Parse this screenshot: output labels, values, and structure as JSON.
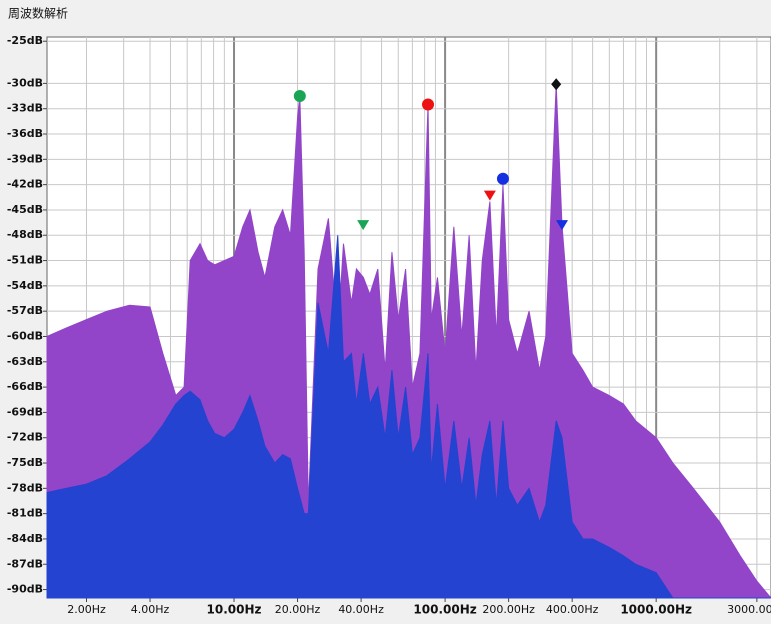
{
  "chart_data": {
    "type": "area",
    "title": "周波数解析",
    "log_x": true,
    "grid": true,
    "xlim": [
      1.3,
      3500
    ],
    "ylim": [
      -91,
      -24.5
    ],
    "xticks": [
      {
        "value": 2,
        "label": "2.00Hz"
      },
      {
        "value": 4,
        "label": "4.00Hz"
      },
      {
        "value": 10,
        "label": "10.00Hz"
      },
      {
        "value": 20,
        "label": "20.00Hz"
      },
      {
        "value": 40,
        "label": "40.00Hz"
      },
      {
        "value": 100,
        "label": "100.00Hz"
      },
      {
        "value": 200,
        "label": "200.00Hz"
      },
      {
        "value": 400,
        "label": "400.00Hz"
      },
      {
        "value": 1000,
        "label": "1000.00Hz"
      },
      {
        "value": 3000,
        "label": "3000.00Hz"
      }
    ],
    "xgrid": [
      2,
      3,
      4,
      5,
      6,
      7,
      8,
      9,
      10,
      20,
      30,
      40,
      50,
      60,
      70,
      80,
      90,
      100,
      200,
      300,
      400,
      500,
      600,
      700,
      800,
      900,
      1000,
      2000,
      3000
    ],
    "yticks": [
      {
        "value": -25,
        "label": "-25dB"
      },
      {
        "value": -30,
        "label": "-30dB"
      },
      {
        "value": -33,
        "label": "-33dB"
      },
      {
        "value": -36,
        "label": "-36dB"
      },
      {
        "value": -39,
        "label": "-39dB"
      },
      {
        "value": -42,
        "label": "-42dB"
      },
      {
        "value": -45,
        "label": "-45dB"
      },
      {
        "value": -48,
        "label": "-48dB"
      },
      {
        "value": -51,
        "label": "-51dB"
      },
      {
        "value": -54,
        "label": "-54dB"
      },
      {
        "value": -57,
        "label": "-57dB"
      },
      {
        "value": -60,
        "label": "-60dB"
      },
      {
        "value": -63,
        "label": "-63dB"
      },
      {
        "value": -66,
        "label": "-66dB"
      },
      {
        "value": -69,
        "label": "-69dB"
      },
      {
        "value": -72,
        "label": "-72dB"
      },
      {
        "value": -75,
        "label": "-75dB"
      },
      {
        "value": -78,
        "label": "-78dB"
      },
      {
        "value": -81,
        "label": "-81dB"
      },
      {
        "value": -84,
        "label": "-84dB"
      },
      {
        "value": -87,
        "label": "-87dB"
      },
      {
        "value": -90,
        "label": "-90dB"
      }
    ],
    "x": [
      1.3,
      1.6,
      2,
      2.5,
      3.2,
      4,
      4.6,
      5.3,
      5.8,
      6.2,
      6.9,
      7.5,
      8.1,
      9,
      10,
      11,
      11.9,
      13,
      14,
      15.6,
      17,
      18.5,
      20,
      20.5,
      21.5,
      22.5,
      25,
      28,
      31,
      33,
      36,
      38,
      41,
      44,
      48,
      52,
      56,
      60,
      65,
      70,
      76,
      83,
      86,
      92,
      100,
      110,
      120,
      130,
      140,
      150,
      163,
      175,
      188,
      200,
      220,
      250,
      280,
      300,
      336,
      358,
      400,
      450,
      500,
      600,
      700,
      800,
      1000,
      1200,
      1500,
      2000,
      2500,
      3000,
      3500
    ],
    "series": [
      {
        "color": "#9245c8",
        "values": [
          -60,
          -59,
          -58,
          -57,
          -56.3,
          -56.5,
          -62,
          -67,
          -66,
          -51,
          -49,
          -51,
          -51.5,
          -51,
          -50.5,
          -47,
          -45,
          -50,
          -53,
          -47,
          -45,
          -48,
          -34,
          -31.5,
          -50,
          -80,
          -52,
          -46,
          -60,
          -49,
          -56,
          -52,
          -53,
          -55,
          -52,
          -64,
          -50,
          -58,
          -52,
          -66,
          -62,
          -32.5,
          -58,
          -53,
          -62,
          -47,
          -60,
          -48,
          -64,
          -51,
          -44,
          -60,
          -42,
          -58,
          -62,
          -57,
          -64,
          -60,
          -30.1,
          -46.8,
          -62,
          -64,
          -66,
          -67,
          -68,
          -70,
          -72,
          -75,
          -78,
          -82,
          -86,
          -89,
          -91
        ]
      },
      {
        "color": "#2443d0",
        "values": [
          -78.5,
          -78,
          -77.5,
          -76.5,
          -74.5,
          -72.5,
          -70.5,
          -68,
          -67,
          -66.5,
          -67.5,
          -70,
          -71.5,
          -72,
          -71,
          -69,
          -67,
          -70,
          -73,
          -75,
          -74,
          -74.5,
          -78,
          -79,
          -81,
          -81,
          -56,
          -62,
          -48,
          -63,
          -62,
          -68,
          -62,
          -68,
          -66,
          -72,
          -64,
          -72,
          -66,
          -74,
          -72,
          -62,
          -76,
          -68,
          -78,
          -70,
          -78,
          -72,
          -80,
          -74,
          -70,
          -80,
          -70,
          -78,
          -80,
          -78,
          -82,
          -80,
          -70,
          -72,
          -82,
          -84,
          -84,
          -85,
          -86,
          -87,
          -88,
          -91,
          -91,
          -91,
          -91,
          -91,
          -91
        ]
      }
    ],
    "markers": [
      {
        "x": 20.5,
        "y": -31.5,
        "shape": "circle",
        "color": "#1aa555"
      },
      {
        "x": 83,
        "y": -32.5,
        "shape": "circle",
        "color": "#ee1111"
      },
      {
        "x": 188,
        "y": -41.3,
        "shape": "circle",
        "color": "#1530e0"
      },
      {
        "x": 336,
        "y": -30.1,
        "shape": "diamond",
        "color": "#111111"
      },
      {
        "x": 40.9,
        "y": -46.8,
        "shape": "triangle",
        "color": "#1aa555"
      },
      {
        "x": 163,
        "y": -43.3,
        "shape": "triangle",
        "color": "#ee1111"
      },
      {
        "x": 358,
        "y": -46.8,
        "shape": "triangle",
        "color": "#1530e0"
      }
    ]
  }
}
